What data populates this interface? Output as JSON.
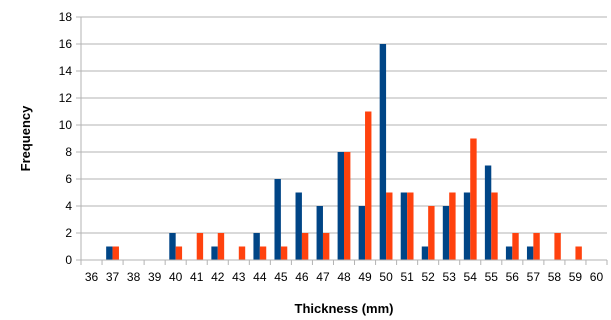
{
  "chart_data": {
    "type": "bar",
    "title": "",
    "xlabel": "Thickness (mm)",
    "ylabel": "Frequency",
    "ylim": [
      0,
      18
    ],
    "yticks": [
      0,
      2,
      4,
      6,
      8,
      10,
      12,
      14,
      16,
      18
    ],
    "grid": "horizontal",
    "legend": "none",
    "categories": [
      "36",
      "37",
      "38",
      "39",
      "40",
      "41",
      "42",
      "43",
      "44",
      "45",
      "46",
      "47",
      "48",
      "49",
      "50",
      "51",
      "52",
      "53",
      "54",
      "55",
      "56",
      "57",
      "58",
      "59",
      "60"
    ],
    "series": [
      {
        "color": "#004586",
        "values": [
          0,
          1,
          0,
          0,
          2,
          0,
          1,
          0,
          2,
          6,
          5,
          4,
          8,
          4,
          16,
          5,
          1,
          4,
          5,
          7,
          1,
          1,
          0,
          0,
          0
        ]
      },
      {
        "color": "#ff420e",
        "values": [
          0,
          1,
          0,
          0,
          1,
          2,
          2,
          1,
          1,
          1,
          2,
          2,
          8,
          11,
          5,
          5,
          4,
          5,
          9,
          5,
          2,
          2,
          2,
          1,
          0
        ]
      }
    ]
  }
}
